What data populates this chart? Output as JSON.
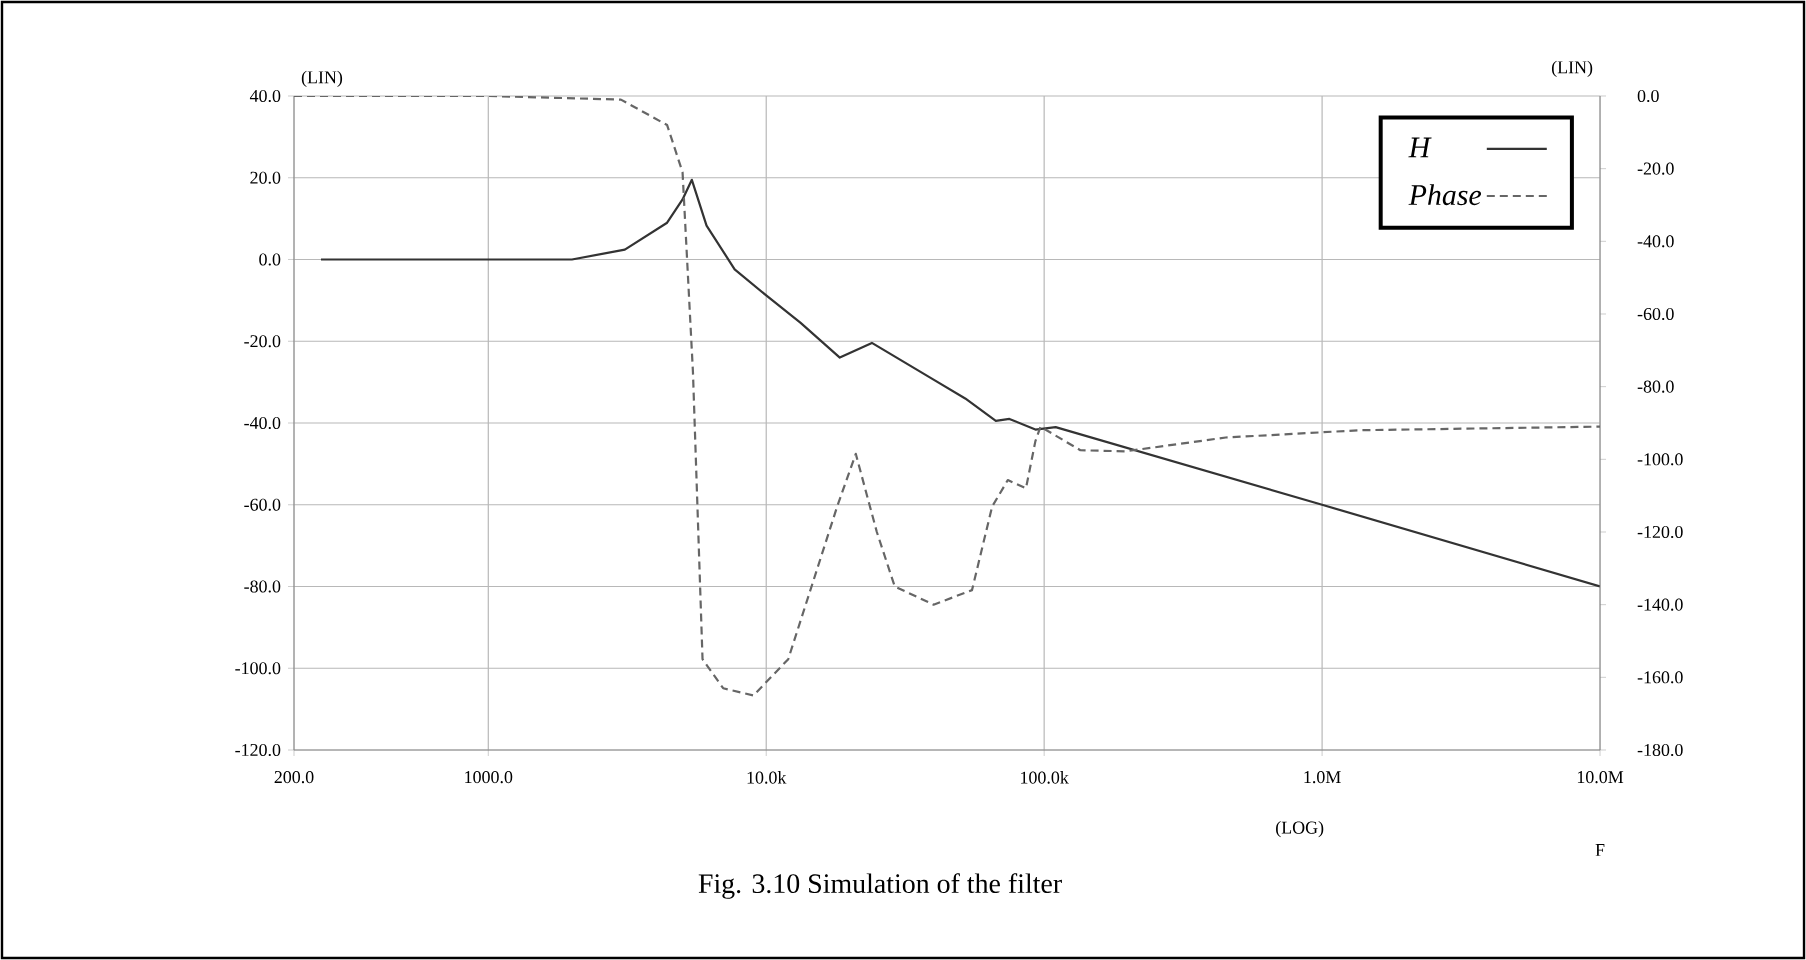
{
  "chart_data": {
    "type": "line",
    "xlabel": "(LOG)",
    "ylabel": "(LIN)",
    "y2label": "(LIN)",
    "annotations": [
      "F",
      "Fig. 3.10 Simulation of the filter"
    ],
    "log": "x",
    "grid": true,
    "legend": "top right",
    "marker": "none",
    "xlim": [
      200,
      10000000
    ],
    "xticks": [
      {
        "value": 200,
        "label": "200.0"
      },
      {
        "value": 1000,
        "label": "1000.0"
      },
      {
        "value": 10000,
        "label": "10.0k"
      },
      {
        "value": 100000,
        "label": "100.0k"
      },
      {
        "value": 1000000,
        "label": "1.0M"
      },
      {
        "value": 10000000,
        "label": "10.0M"
      }
    ],
    "ylim": [
      -120,
      40
    ],
    "yticks": [
      {
        "value": 40,
        "label": "40.0"
      },
      {
        "value": 20,
        "label": "20.0"
      },
      {
        "value": 0,
        "label": "0.0"
      },
      {
        "value": -20,
        "label": "-20.0"
      },
      {
        "value": -40,
        "label": "-40.0"
      },
      {
        "value": -60,
        "label": "-60.0"
      },
      {
        "value": -80,
        "label": "-80.0"
      },
      {
        "value": -100,
        "label": "-100.0"
      },
      {
        "value": -120,
        "label": "-120.0"
      }
    ],
    "y2lim": [
      -180,
      0
    ],
    "y2ticks": [
      {
        "value": 0,
        "label": "0.0"
      },
      {
        "value": -20,
        "label": "-20.0"
      },
      {
        "value": -40,
        "label": "-40.0"
      },
      {
        "value": -60,
        "label": "-60.0"
      },
      {
        "value": -80,
        "label": "-80.0"
      },
      {
        "value": -100,
        "label": "-100.0"
      },
      {
        "value": -120,
        "label": "-120.0"
      },
      {
        "value": -140,
        "label": "-140.0"
      },
      {
        "value": -160,
        "label": "-160.0"
      },
      {
        "value": -180,
        "label": "-180.0"
      }
    ],
    "series": [
      {
        "name": "H",
        "color": "#333333",
        "line_style": "solid",
        "x": [
          250,
          1000,
          2000,
          3100,
          4400,
          5000,
          5400,
          6100,
          7700,
          10000,
          13300,
          18400,
          24000,
          40000,
          52000,
          67000,
          75000,
          93000,
          110000,
          1000000,
          10000000
        ],
        "values": [
          0,
          0,
          0,
          2.4,
          9,
          14.7,
          19.5,
          8.3,
          -2.4,
          -8.8,
          -15.5,
          -24,
          -20.4,
          -29.4,
          -34,
          -39.5,
          -39,
          -41.6,
          -41,
          -60,
          -80
        ]
      },
      {
        "name": "Phase",
        "color": "#666666",
        "line_style": "dashed",
        "axis": "y2",
        "x": [
          200,
          1000,
          3000,
          4400,
          5000,
          5450,
          5900,
          7000,
          9000,
          12000,
          18000,
          21000,
          25000,
          29000,
          40000,
          55000,
          65000,
          74000,
          86000,
          93000,
          97000,
          135000,
          196000,
          450000,
          1360000,
          10000000
        ],
        "values": [
          0,
          0,
          -1,
          -8,
          -21,
          -76,
          -155,
          -163,
          -165,
          -155,
          -113,
          -98.5,
          -120,
          -135,
          -140,
          -136,
          -113,
          -105.7,
          -108,
          -95,
          -91,
          -97.5,
          -97.8,
          -94,
          -92,
          -91
        ]
      }
    ]
  }
}
